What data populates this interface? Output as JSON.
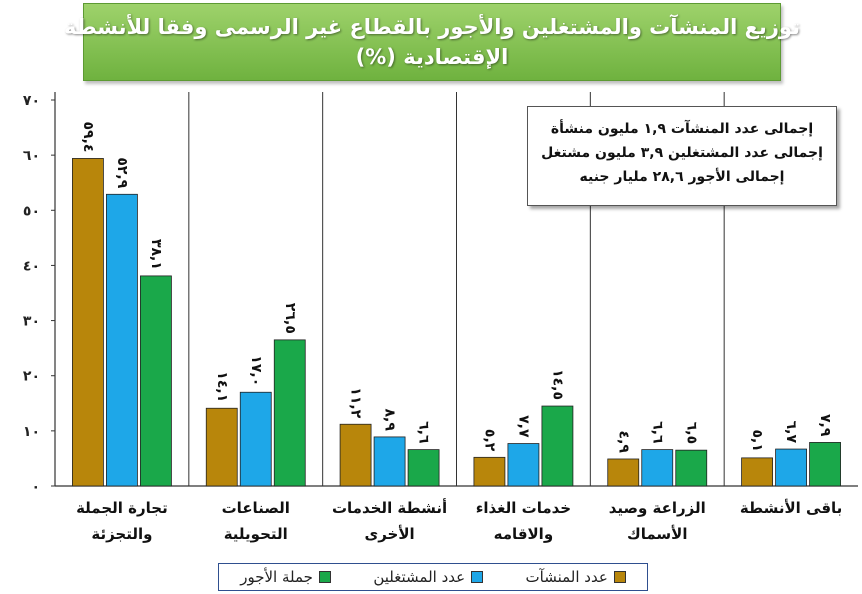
{
  "title": {
    "line1": "توزيع المنشآت والمشتغلين والأجور بالقطاع غير الرسمى وفقا للأنشطة",
    "line2": "الإقتصادية (%)"
  },
  "note": {
    "line1": "إجمالى عدد المنشآت ١,٩ مليون منشأة",
    "line2": "إجمالى عدد المشتغلين ٣,٩ مليون مشتغل",
    "line3": "إجمالى الأجور ٢٨,٦ مليار جنيه"
  },
  "colors": {
    "establishments": "#b8860b",
    "workers": "#1ea7e8",
    "wages": "#1aa84a"
  },
  "chart_data": {
    "type": "bar",
    "ylim": [
      0,
      70
    ],
    "yticks": [
      0,
      10,
      20,
      30,
      40,
      50,
      60,
      70
    ],
    "ytick_labels": [
      "٠",
      "١٠",
      "٢٠",
      "٣٠",
      "٤٠",
      "٥٠",
      "٦٠",
      "٧٠"
    ],
    "grid": "vertical-separators",
    "legend_position": "bottom",
    "categories": [
      [
        "تجارة الجملة",
        "والتجزئة"
      ],
      [
        "الصناعات",
        "التحويلية"
      ],
      [
        "أنشطة الخدمات",
        "الأخرى"
      ],
      [
        "خدمات الغذاء",
        "والاقامه"
      ],
      [
        "الزراعة وصيد",
        "الأسماك"
      ],
      [
        "باقى الأنشطة"
      ]
    ],
    "series": [
      {
        "name": "عدد المنشآت",
        "values": [
          59.4,
          14.1,
          11.2,
          5.2,
          4.9,
          5.1
        ],
        "labels": [
          "٥٩,٤",
          "١٤,١",
          "١١,٢",
          "٥,٢",
          "٤,٩",
          "٥,١"
        ]
      },
      {
        "name": "عدد المشتغلين",
        "values": [
          52.9,
          17.0,
          8.9,
          7.7,
          6.6,
          6.7
        ],
        "labels": [
          "٥٢,٩",
          "١٧,٠",
          "٨,٩",
          "٧,٧",
          "٦,٦",
          "٦,٧"
        ]
      },
      {
        "name": "جملة الأجور",
        "values": [
          38.1,
          26.5,
          6.6,
          14.5,
          6.5,
          7.9
        ],
        "labels": [
          "٣٨,١",
          "٢٦,٥",
          "٦,٦",
          "١٤,٥",
          "٦,٥",
          "٧,٩"
        ]
      }
    ]
  }
}
